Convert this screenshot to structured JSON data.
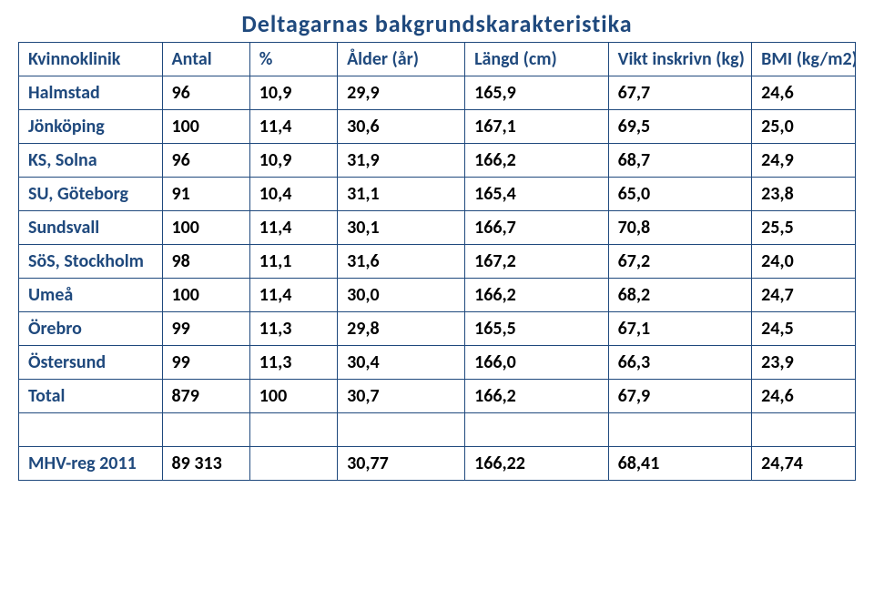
{
  "title": {
    "text": "Deltagarnas bakgrundskarakteristika",
    "color": "#1f497d",
    "fontsize": 26
  },
  "table": {
    "border_color": "#1f497d",
    "header_color": "#1f497d",
    "rowhead_color": "#1f497d",
    "cell_color": "#000000",
    "background_color": "#ffffff",
    "cell_fontsize": 20,
    "col_widths": [
      "18%",
      "11%",
      "11%",
      "16%",
      "18%",
      "18%",
      "13%"
    ],
    "columns": [
      "Kvinnoklinik",
      "Antal",
      "%",
      "Ålder (år)",
      "Längd (cm)",
      "Vikt inskrivn (kg)",
      "BMI (kg/m2)"
    ],
    "rows": [
      {
        "head": "Halmstad",
        "cells": [
          "96",
          "10,9",
          "29,9",
          "165,9",
          "67,7",
          "24,6"
        ]
      },
      {
        "head": "Jönköping",
        "cells": [
          "100",
          "11,4",
          "30,6",
          "167,1",
          "69,5",
          "25,0"
        ]
      },
      {
        "head": "KS, Solna",
        "cells": [
          "96",
          "10,9",
          "31,9",
          "166,2",
          "68,7",
          "24,9"
        ]
      },
      {
        "head": "SU, Göteborg",
        "cells": [
          "91",
          "10,4",
          "31,1",
          "165,4",
          "65,0",
          "23,8"
        ]
      },
      {
        "head": "Sundsvall",
        "cells": [
          "100",
          "11,4",
          "30,1",
          "166,7",
          "70,8",
          "25,5"
        ]
      },
      {
        "head": "SöS, Stockholm",
        "cells": [
          "98",
          "11,1",
          "31,6",
          "167,2",
          "67,2",
          "24,0"
        ],
        "wrap": true
      },
      {
        "head": "Umeå",
        "cells": [
          "100",
          "11,4",
          "30,0",
          "166,2",
          "68,2",
          "24,7"
        ]
      },
      {
        "head": "Örebro",
        "cells": [
          "99",
          "11,3",
          "29,8",
          "165,5",
          "67,1",
          "24,5"
        ]
      },
      {
        "head": "Östersund",
        "cells": [
          "99",
          "11,3",
          "30,4",
          "166,0",
          "66,3",
          "23,9"
        ]
      },
      {
        "head": "Total",
        "cells": [
          "879",
          "100",
          "30,7",
          "166,2",
          "67,9",
          "24,6"
        ]
      }
    ],
    "spacer_after_total": true,
    "footer_row": {
      "head": "MHV-reg 2011",
      "cells": [
        "89 313",
        "",
        "30,77",
        "166,22",
        "68,41",
        "24,74"
      ]
    }
  }
}
